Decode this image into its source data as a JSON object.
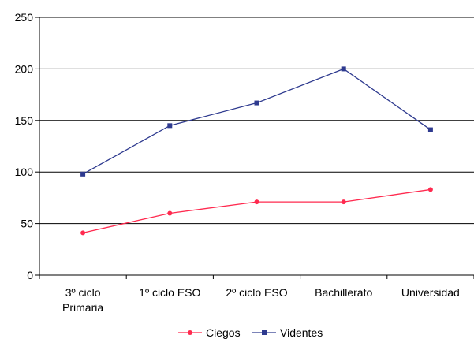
{
  "chart_data": {
    "type": "line",
    "categories": [
      "3º ciclo Primaria",
      "1º ciclo ESO",
      "2º ciclo ESO",
      "Bachillerato",
      "Universidad"
    ],
    "category_lines": [
      [
        "3º ciclo",
        "Primaria"
      ],
      [
        "1º ciclo ESO"
      ],
      [
        "2º ciclo ESO"
      ],
      [
        "Bachillerato"
      ],
      [
        "Universidad"
      ]
    ],
    "series": [
      {
        "name": "Ciegos",
        "color": "#ff2a4f",
        "marker": "circle",
        "values": [
          41,
          60,
          71,
          71,
          83
        ]
      },
      {
        "name": "Videntes",
        "color": "#2e3a8f",
        "marker": "square",
        "values": [
          98,
          145,
          167,
          200,
          141
        ]
      }
    ],
    "ylim": [
      0,
      250
    ],
    "yticks": [
      0,
      50,
      100,
      150,
      200,
      250
    ],
    "grid": true,
    "legend_position": "bottom",
    "title": "",
    "xlabel": "",
    "ylabel": ""
  }
}
